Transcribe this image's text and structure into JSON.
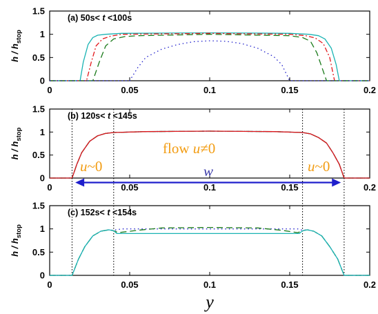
{
  "figure": {
    "xlabel": "y"
  },
  "colors": {
    "cyan": "#19b3b3",
    "red": "#e3161a",
    "green": "#1a7a1a",
    "blue": "#1f1fcc",
    "orange": "#f29c12",
    "navy": "#3a3aa8"
  },
  "chart_data": [
    {
      "type": "line",
      "panel": "a",
      "title_parts": [
        "(a) 50s< ",
        "t",
        " <100s"
      ],
      "ylabel": "h / h",
      "ylabel_sub": "stop",
      "xlim": [
        0,
        0.2
      ],
      "ylim": [
        0,
        1.5
      ],
      "xticks": [
        0,
        0.05,
        0.1,
        0.15,
        0.2
      ],
      "xtick_labels": [
        "0",
        "0.05",
        "0.1",
        "0.15",
        "0.2"
      ],
      "yticks": [
        0,
        0.5,
        1,
        1.5
      ],
      "ytick_labels": [
        "0",
        "0.5",
        "1",
        "1.5"
      ],
      "series": [
        {
          "color": "cyan",
          "dash": "",
          "x": [
            0,
            0.019,
            0.021,
            0.024,
            0.027,
            0.03,
            0.035,
            0.045,
            0.1,
            0.15,
            0.162,
            0.168,
            0.172,
            0.176,
            0.179,
            0.181,
            0.2
          ],
          "y": [
            0,
            0,
            0.4,
            0.78,
            0.93,
            0.98,
            1.0,
            1.02,
            1.03,
            1.02,
            1.0,
            0.97,
            0.9,
            0.7,
            0.35,
            0,
            0
          ]
        },
        {
          "color": "red",
          "dash": "7,3,2,3",
          "x": [
            0,
            0.023,
            0.026,
            0.029,
            0.033,
            0.038,
            0.045,
            0.1,
            0.15,
            0.16,
            0.166,
            0.171,
            0.175,
            0.178,
            0.2
          ],
          "y": [
            0,
            0,
            0.4,
            0.75,
            0.9,
            0.96,
            1.0,
            1.02,
            1.0,
            0.97,
            0.92,
            0.8,
            0.5,
            0,
            0
          ]
        },
        {
          "color": "green",
          "dash": "9,5",
          "x": [
            0,
            0.027,
            0.031,
            0.035,
            0.04,
            0.047,
            0.055,
            0.1,
            0.15,
            0.158,
            0.163,
            0.167,
            0.17,
            0.173,
            0.2
          ],
          "y": [
            0,
            0,
            0.4,
            0.75,
            0.9,
            0.95,
            0.97,
            1.0,
            0.97,
            0.93,
            0.85,
            0.6,
            0.3,
            0,
            0
          ]
        },
        {
          "color": "blue",
          "dash": "1.5,4",
          "x": [
            0,
            0.05,
            0.055,
            0.06,
            0.07,
            0.08,
            0.09,
            0.1,
            0.11,
            0.12,
            0.13,
            0.14,
            0.145,
            0.15,
            0.2
          ],
          "y": [
            0,
            0,
            0.28,
            0.5,
            0.68,
            0.78,
            0.84,
            0.86,
            0.85,
            0.8,
            0.7,
            0.52,
            0.35,
            0,
            0
          ]
        }
      ]
    },
    {
      "type": "line",
      "panel": "b",
      "title_parts": [
        "(b) 120s< ",
        "t",
        " <145s"
      ],
      "ylabel": "h / h",
      "ylabel_sub": "stop",
      "xlim": [
        0,
        0.2
      ],
      "ylim": [
        0,
        1.5
      ],
      "xticks": [
        0,
        0.05,
        0.1,
        0.15,
        0.2
      ],
      "xtick_labels": [
        "0",
        "0.05",
        "0.1",
        "0.15",
        "0.2"
      ],
      "yticks": [
        0,
        0.5,
        1,
        1.5
      ],
      "ytick_labels": [
        "0",
        "0.5",
        "1",
        "1.5"
      ],
      "vlines": [
        0.014,
        0.04,
        0.158,
        0.184
      ],
      "arrow": [
        0.016,
        0.182
      ],
      "annotations": {
        "flow_text": [
          "flow ",
          "u",
          "≠0"
        ],
        "u_left": [
          "u",
          "~0"
        ],
        "u_right": [
          "u",
          "~0"
        ],
        "w": "w"
      },
      "series": [
        {
          "color": "cyan",
          "dash": "",
          "x": [
            0,
            0.014,
            0.017,
            0.02,
            0.025,
            0.03,
            0.035,
            0.04,
            0.06,
            0.1,
            0.14,
            0.158,
            0.163,
            0.168,
            0.173,
            0.177,
            0.181,
            0.184,
            0.2
          ],
          "y": [
            0,
            0,
            0.3,
            0.55,
            0.8,
            0.92,
            0.97,
            0.99,
            1.01,
            1.02,
            1.01,
            0.99,
            0.96,
            0.88,
            0.76,
            0.55,
            0.3,
            0,
            0
          ]
        },
        {
          "color": "green",
          "dash": "9,5",
          "x": [
            0,
            0.014,
            0.017,
            0.02,
            0.025,
            0.03,
            0.035,
            0.04,
            0.06,
            0.1,
            0.14,
            0.158,
            0.163,
            0.168,
            0.173,
            0.177,
            0.181,
            0.184,
            0.2
          ],
          "y": [
            0,
            0,
            0.3,
            0.55,
            0.8,
            0.92,
            0.97,
            0.99,
            1.01,
            1.02,
            1.01,
            0.99,
            0.96,
            0.88,
            0.76,
            0.55,
            0.3,
            0,
            0
          ]
        },
        {
          "color": "blue",
          "dash": "1.5,4",
          "x": [
            0,
            0.014,
            0.017,
            0.02,
            0.025,
            0.03,
            0.035,
            0.04,
            0.06,
            0.1,
            0.14,
            0.158,
            0.163,
            0.168,
            0.173,
            0.177,
            0.181,
            0.184,
            0.2
          ],
          "y": [
            0,
            0,
            0.3,
            0.55,
            0.8,
            0.92,
            0.97,
            0.99,
            1.01,
            1.02,
            1.01,
            0.99,
            0.96,
            0.88,
            0.76,
            0.55,
            0.3,
            0,
            0
          ]
        },
        {
          "color": "red",
          "dash": "",
          "x": [
            0,
            0.014,
            0.017,
            0.02,
            0.025,
            0.03,
            0.035,
            0.04,
            0.06,
            0.1,
            0.14,
            0.158,
            0.163,
            0.168,
            0.173,
            0.177,
            0.181,
            0.184,
            0.2
          ],
          "y": [
            0,
            0,
            0.3,
            0.55,
            0.8,
            0.92,
            0.97,
            0.99,
            1.01,
            1.02,
            1.01,
            0.99,
            0.96,
            0.88,
            0.76,
            0.55,
            0.3,
            0,
            0
          ]
        }
      ]
    },
    {
      "type": "line",
      "panel": "c",
      "title_parts": [
        "(c) 152s< ",
        "t",
        " <154s"
      ],
      "ylabel": "h / h",
      "ylabel_sub": "stop",
      "xlim": [
        0,
        0.2
      ],
      "ylim": [
        0,
        1.5
      ],
      "xticks": [
        0,
        0.05,
        0.1,
        0.15,
        0.2
      ],
      "xtick_labels": [
        "0",
        "0.05",
        "0.1",
        "0.15",
        "0.2"
      ],
      "yticks": [
        0,
        0.5,
        1,
        1.5
      ],
      "ytick_labels": [
        "0",
        "0.5",
        "1",
        "1.5"
      ],
      "vlines": [
        0.014,
        0.04,
        0.158,
        0.184
      ],
      "series": [
        {
          "color": "blue",
          "dash": "1.5,4",
          "x": [
            0,
            0.014,
            0.018,
            0.022,
            0.027,
            0.032,
            0.037,
            0.04,
            0.045,
            0.1,
            0.155,
            0.158,
            0.161,
            0.165,
            0.17,
            0.175,
            0.18,
            0.184,
            0.2
          ],
          "y": [
            0,
            0,
            0.35,
            0.62,
            0.85,
            0.95,
            0.98,
            0.97,
            1.0,
            1.0,
            1.0,
            0.97,
            0.98,
            0.95,
            0.85,
            0.62,
            0.35,
            0,
            0
          ]
        },
        {
          "color": "green",
          "dash": "9,5",
          "x": [
            0,
            0.014,
            0.018,
            0.022,
            0.027,
            0.032,
            0.037,
            0.04,
            0.043,
            0.055,
            0.07,
            0.1,
            0.13,
            0.145,
            0.155,
            0.158,
            0.161,
            0.165,
            0.17,
            0.175,
            0.18,
            0.184,
            0.2
          ],
          "y": [
            0,
            0,
            0.35,
            0.62,
            0.85,
            0.95,
            0.98,
            0.96,
            0.92,
            0.97,
            1.02,
            1.03,
            1.02,
            0.97,
            0.92,
            0.96,
            0.98,
            0.95,
            0.85,
            0.62,
            0.35,
            0,
            0
          ]
        },
        {
          "color": "cyan",
          "dash": "",
          "x": [
            0,
            0.014,
            0.018,
            0.022,
            0.027,
            0.032,
            0.037,
            0.04,
            0.042,
            0.1,
            0.156,
            0.158,
            0.161,
            0.165,
            0.17,
            0.175,
            0.18,
            0.184,
            0.2
          ],
          "y": [
            0,
            0,
            0.35,
            0.62,
            0.85,
            0.95,
            0.98,
            0.96,
            0.9,
            0.9,
            0.9,
            0.96,
            0.98,
            0.95,
            0.85,
            0.62,
            0.35,
            0,
            0
          ]
        }
      ]
    }
  ]
}
